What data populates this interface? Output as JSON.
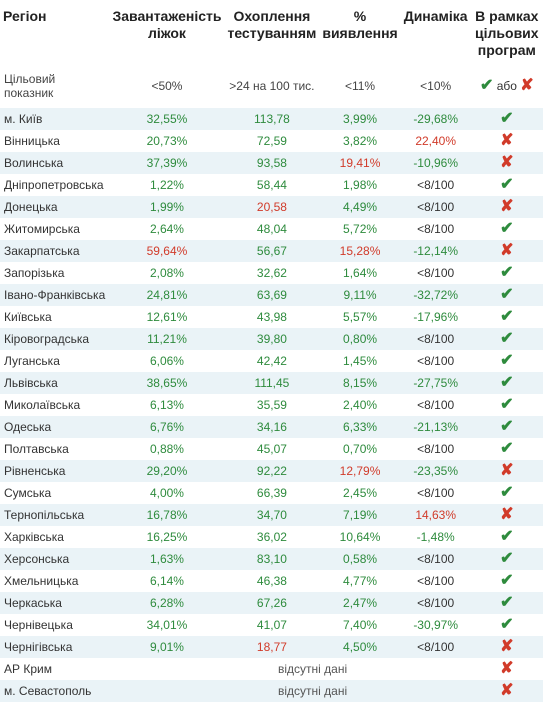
{
  "colors": {
    "green": "#2e8b3d",
    "red": "#d13b2a",
    "black": "#333333",
    "stripe": "#eaf3f7",
    "bg": "#ffffff"
  },
  "header": {
    "region": "Регіон",
    "load": "Завантаженість ліжок",
    "test": "Охоплення тестуванням",
    "detect": "% виявлення",
    "dyn": "Динаміка",
    "target": "В рамках цільових програм"
  },
  "target_row": {
    "label": "Цільовий показник",
    "load": "<50%",
    "test": ">24 на 100 тис.",
    "detect": "<11%",
    "dyn": "<10%",
    "target_green": "✔",
    "target_sep": "або",
    "target_red": "✘"
  },
  "rows": [
    {
      "region": "м. Київ",
      "load": {
        "v": "32,55%",
        "c": "green"
      },
      "test": {
        "v": "113,78",
        "c": "green"
      },
      "detect": {
        "v": "3,99%",
        "c": "green"
      },
      "dyn": {
        "v": "-29,68%",
        "c": "green"
      },
      "ok": true
    },
    {
      "region": "Вінницька",
      "load": {
        "v": "20,73%",
        "c": "green"
      },
      "test": {
        "v": "72,59",
        "c": "green"
      },
      "detect": {
        "v": "3,82%",
        "c": "green"
      },
      "dyn": {
        "v": "22,40%",
        "c": "red"
      },
      "ok": false
    },
    {
      "region": "Волинська",
      "load": {
        "v": "37,39%",
        "c": "green"
      },
      "test": {
        "v": "93,58",
        "c": "green"
      },
      "detect": {
        "v": "19,41%",
        "c": "red"
      },
      "dyn": {
        "v": "-10,96%",
        "c": "green"
      },
      "ok": false
    },
    {
      "region": "Дніпропетровська",
      "load": {
        "v": "1,22%",
        "c": "green"
      },
      "test": {
        "v": "58,44",
        "c": "green"
      },
      "detect": {
        "v": "1,98%",
        "c": "green"
      },
      "dyn": {
        "v": "<8/100",
        "c": "black"
      },
      "ok": true
    },
    {
      "region": "Донецька",
      "load": {
        "v": "1,99%",
        "c": "green"
      },
      "test": {
        "v": "20,58",
        "c": "red"
      },
      "detect": {
        "v": "4,49%",
        "c": "green"
      },
      "dyn": {
        "v": "<8/100",
        "c": "black"
      },
      "ok": false
    },
    {
      "region": "Житомирська",
      "load": {
        "v": "2,64%",
        "c": "green"
      },
      "test": {
        "v": "48,04",
        "c": "green"
      },
      "detect": {
        "v": "5,72%",
        "c": "green"
      },
      "dyn": {
        "v": "<8/100",
        "c": "black"
      },
      "ok": true
    },
    {
      "region": "Закарпатська",
      "load": {
        "v": "59,64%",
        "c": "red"
      },
      "test": {
        "v": "56,67",
        "c": "green"
      },
      "detect": {
        "v": "15,28%",
        "c": "red"
      },
      "dyn": {
        "v": "-12,14%",
        "c": "green"
      },
      "ok": false
    },
    {
      "region": "Запорізька",
      "load": {
        "v": "2,08%",
        "c": "green"
      },
      "test": {
        "v": "32,62",
        "c": "green"
      },
      "detect": {
        "v": "1,64%",
        "c": "green"
      },
      "dyn": {
        "v": "<8/100",
        "c": "black"
      },
      "ok": true
    },
    {
      "region": "Івано-Франківська",
      "load": {
        "v": "24,81%",
        "c": "green"
      },
      "test": {
        "v": "63,69",
        "c": "green"
      },
      "detect": {
        "v": "9,11%",
        "c": "green"
      },
      "dyn": {
        "v": "-32,72%",
        "c": "green"
      },
      "ok": true
    },
    {
      "region": "Київська",
      "load": {
        "v": "12,61%",
        "c": "green"
      },
      "test": {
        "v": "43,98",
        "c": "green"
      },
      "detect": {
        "v": "5,57%",
        "c": "green"
      },
      "dyn": {
        "v": "-17,96%",
        "c": "green"
      },
      "ok": true
    },
    {
      "region": "Кіровоградська",
      "load": {
        "v": "11,21%",
        "c": "green"
      },
      "test": {
        "v": "39,80",
        "c": "green"
      },
      "detect": {
        "v": "0,80%",
        "c": "green"
      },
      "dyn": {
        "v": "<8/100",
        "c": "black"
      },
      "ok": true
    },
    {
      "region": "Луганська",
      "load": {
        "v": "6,06%",
        "c": "green"
      },
      "test": {
        "v": "42,42",
        "c": "green"
      },
      "detect": {
        "v": "1,45%",
        "c": "green"
      },
      "dyn": {
        "v": "<8/100",
        "c": "black"
      },
      "ok": true
    },
    {
      "region": "Львівська",
      "load": {
        "v": "38,65%",
        "c": "green"
      },
      "test": {
        "v": "111,45",
        "c": "green"
      },
      "detect": {
        "v": "8,15%",
        "c": "green"
      },
      "dyn": {
        "v": "-27,75%",
        "c": "green"
      },
      "ok": true
    },
    {
      "region": "Миколаївська",
      "load": {
        "v": "6,13%",
        "c": "green"
      },
      "test": {
        "v": "35,59",
        "c": "green"
      },
      "detect": {
        "v": "2,40%",
        "c": "green"
      },
      "dyn": {
        "v": "<8/100",
        "c": "black"
      },
      "ok": true
    },
    {
      "region": "Одеська",
      "load": {
        "v": "6,76%",
        "c": "green"
      },
      "test": {
        "v": "34,16",
        "c": "green"
      },
      "detect": {
        "v": "6,33%",
        "c": "green"
      },
      "dyn": {
        "v": "-21,13%",
        "c": "green"
      },
      "ok": true
    },
    {
      "region": "Полтавська",
      "load": {
        "v": "0,88%",
        "c": "green"
      },
      "test": {
        "v": "45,07",
        "c": "green"
      },
      "detect": {
        "v": "0,70%",
        "c": "green"
      },
      "dyn": {
        "v": "<8/100",
        "c": "black"
      },
      "ok": true
    },
    {
      "region": "Рівненська",
      "load": {
        "v": "29,20%",
        "c": "green"
      },
      "test": {
        "v": "92,22",
        "c": "green"
      },
      "detect": {
        "v": "12,79%",
        "c": "red"
      },
      "dyn": {
        "v": "-23,35%",
        "c": "green"
      },
      "ok": false
    },
    {
      "region": "Сумська",
      "load": {
        "v": "4,00%",
        "c": "green"
      },
      "test": {
        "v": "66,39",
        "c": "green"
      },
      "detect": {
        "v": "2,45%",
        "c": "green"
      },
      "dyn": {
        "v": "<8/100",
        "c": "black"
      },
      "ok": true
    },
    {
      "region": "Тернопільська",
      "load": {
        "v": "16,78%",
        "c": "green"
      },
      "test": {
        "v": "34,70",
        "c": "green"
      },
      "detect": {
        "v": "7,19%",
        "c": "green"
      },
      "dyn": {
        "v": "14,63%",
        "c": "red"
      },
      "ok": false
    },
    {
      "region": "Харківська",
      "load": {
        "v": "16,25%",
        "c": "green"
      },
      "test": {
        "v": "36,02",
        "c": "green"
      },
      "detect": {
        "v": "10,64%",
        "c": "green"
      },
      "dyn": {
        "v": "-1,48%",
        "c": "green"
      },
      "ok": true
    },
    {
      "region": "Херсонська",
      "load": {
        "v": "1,63%",
        "c": "green"
      },
      "test": {
        "v": "83,10",
        "c": "green"
      },
      "detect": {
        "v": "0,58%",
        "c": "green"
      },
      "dyn": {
        "v": "<8/100",
        "c": "black"
      },
      "ok": true
    },
    {
      "region": "Хмельницька",
      "load": {
        "v": "6,14%",
        "c": "green"
      },
      "test": {
        "v": "46,38",
        "c": "green"
      },
      "detect": {
        "v": "4,77%",
        "c": "green"
      },
      "dyn": {
        "v": "<8/100",
        "c": "black"
      },
      "ok": true
    },
    {
      "region": "Черкаська",
      "load": {
        "v": "6,28%",
        "c": "green"
      },
      "test": {
        "v": "67,26",
        "c": "green"
      },
      "detect": {
        "v": "2,47%",
        "c": "green"
      },
      "dyn": {
        "v": "<8/100",
        "c": "black"
      },
      "ok": true
    },
    {
      "region": "Чернівецька",
      "load": {
        "v": "34,01%",
        "c": "green"
      },
      "test": {
        "v": "41,07",
        "c": "green"
      },
      "detect": {
        "v": "7,40%",
        "c": "green"
      },
      "dyn": {
        "v": "-30,97%",
        "c": "green"
      },
      "ok": true
    },
    {
      "region": "Чернігівська",
      "load": {
        "v": "9,01%",
        "c": "green"
      },
      "test": {
        "v": "18,77",
        "c": "red"
      },
      "detect": {
        "v": "4,50%",
        "c": "green"
      },
      "dyn": {
        "v": "<8/100",
        "c": "black"
      },
      "ok": false
    },
    {
      "region": "АР Крим",
      "nodata": "відсутні дані",
      "ok": false
    },
    {
      "region": "м. Севастополь",
      "nodata": "відсутні дані",
      "ok": false
    }
  ]
}
